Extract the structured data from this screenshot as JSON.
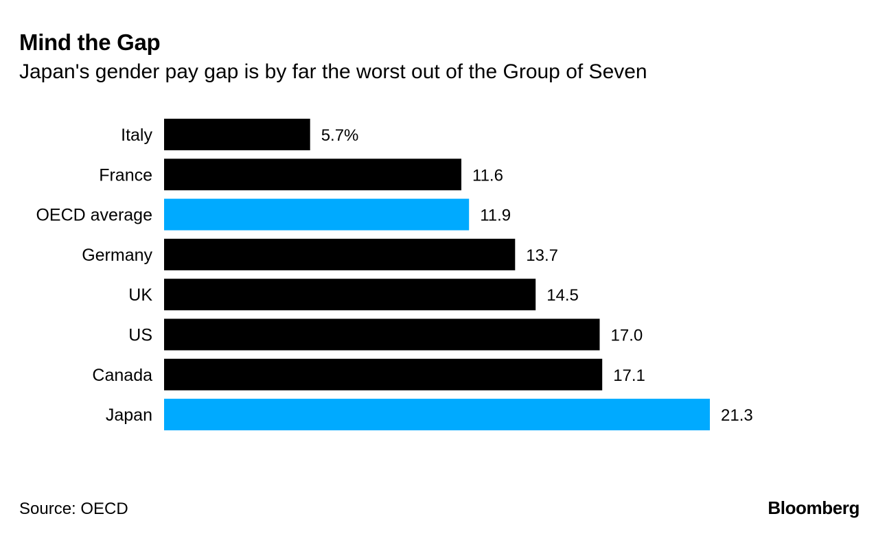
{
  "header": {
    "title": "Mind the Gap",
    "subtitle": "Japan's gender pay gap is by far the worst out of the Group of Seven"
  },
  "footer": {
    "source": "Source: OECD",
    "brand": "Bloomberg"
  },
  "colors": {
    "default_bar": "#000000",
    "highlight_bar": "#00aaff",
    "text": "#000000"
  },
  "chart_data": {
    "type": "bar",
    "orientation": "horizontal",
    "title": "Mind the Gap",
    "subtitle": "Japan's gender pay gap is by far the worst out of the Group of Seven",
    "xlabel": "",
    "ylabel": "",
    "xlim": [
      0,
      21.3
    ],
    "grid": false,
    "categories": [
      "Italy",
      "France",
      "OECD average",
      "Germany",
      "UK",
      "US",
      "Canada",
      "Japan"
    ],
    "values": [
      5.7,
      11.6,
      11.9,
      13.7,
      14.5,
      17.0,
      17.1,
      21.3
    ],
    "value_labels": [
      "5.7%",
      "11.6",
      "11.9",
      "13.7",
      "14.5",
      "17.0",
      "17.1",
      "21.3"
    ],
    "highlight": [
      false,
      false,
      true,
      false,
      false,
      false,
      false,
      true
    ]
  }
}
